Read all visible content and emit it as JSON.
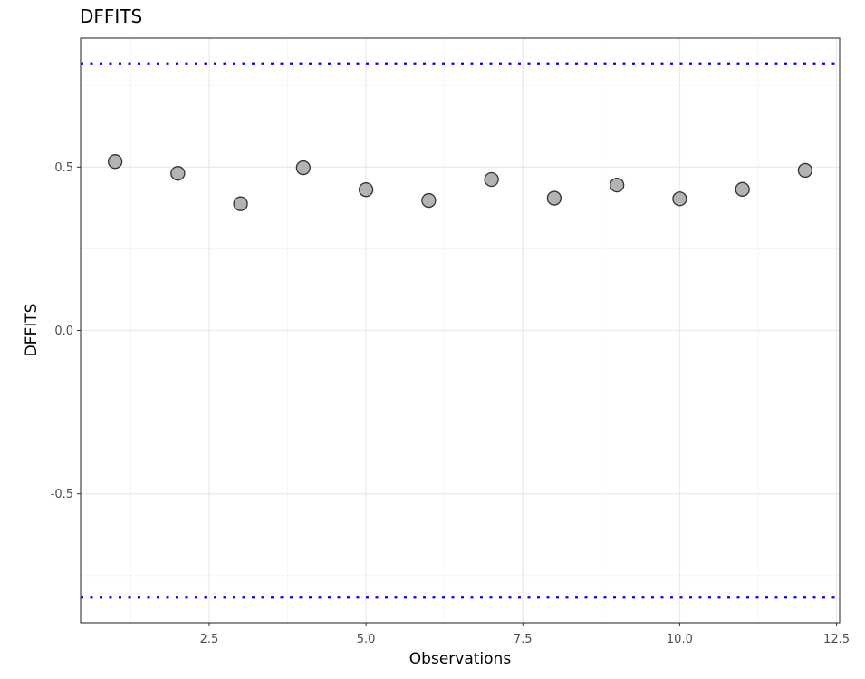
{
  "chart_data": {
    "type": "scatter",
    "title": "DFFITS",
    "xlabel": "Observations",
    "ylabel": "DFFITS",
    "x": [
      1,
      2,
      3,
      4,
      5,
      6,
      7,
      8,
      9,
      10,
      11,
      12
    ],
    "y": [
      0.517,
      0.481,
      0.388,
      0.498,
      0.431,
      0.398,
      0.462,
      0.405,
      0.445,
      0.403,
      0.432,
      0.49
    ],
    "xlim": [
      0.45,
      12.55
    ],
    "ylim": [
      -0.895,
      0.895
    ],
    "x_ticks": [
      2.5,
      5.0,
      7.5,
      10.0,
      12.5
    ],
    "x_tick_labels": [
      "2.5",
      "5.0",
      "7.5",
      "10.0",
      "12.5"
    ],
    "y_ticks": [
      -0.5,
      0.0,
      0.5
    ],
    "y_tick_labels": [
      "-0.5",
      "0.0",
      "0.5"
    ],
    "threshold_lines": [
      0.8165,
      -0.8165
    ],
    "grid": true,
    "colors": {
      "point_fill": "#b3b3b3",
      "point_stroke": "#333333",
      "threshold": "#0000ff",
      "grid_major": "#ebebeb",
      "grid_minor": "#f4f4f4",
      "panel_border": "#333333"
    }
  }
}
